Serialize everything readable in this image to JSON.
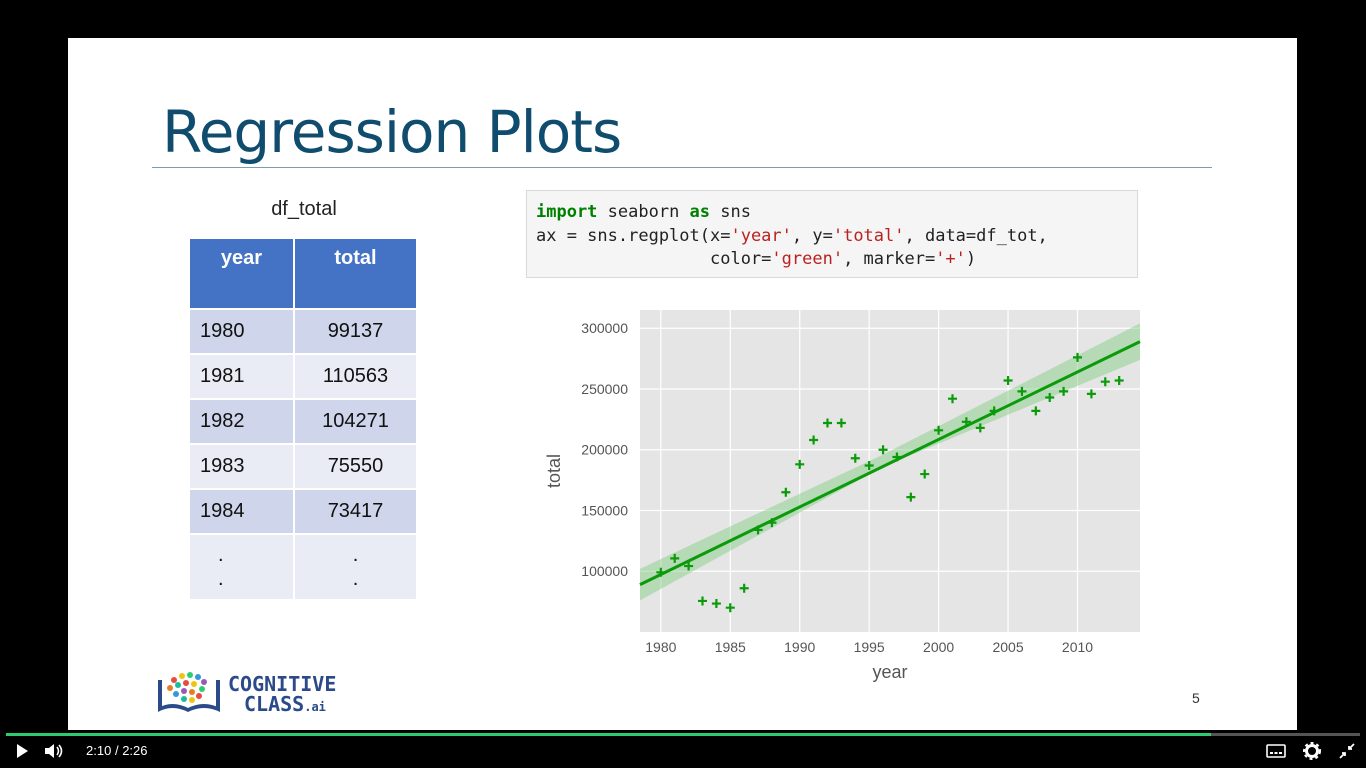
{
  "slide": {
    "title": "Regression Plots",
    "page_number": "5",
    "table_caption": "df_total",
    "table": {
      "headers": [
        "year",
        "total"
      ],
      "rows": [
        [
          "1980",
          "99137"
        ],
        [
          "1981",
          "110563"
        ],
        [
          "1982",
          "104271"
        ],
        [
          "1983",
          "75550"
        ],
        [
          "1984",
          "73417"
        ]
      ],
      "ellipsis": [
        ".",
        "."
      ]
    },
    "code": {
      "line1": {
        "kw1": "import",
        "t1": " seaborn ",
        "kw2": "as",
        "t2": " sns"
      },
      "line2": {
        "t1": "ax = sns.regplot(x=",
        "s1": "'year'",
        "t2": ", y=",
        "s2": "'total'",
        "t3": ", data=df_tot,"
      },
      "line3": {
        "t1": "                 color=",
        "s1": "'green'",
        "t2": ", marker=",
        "s2": "'+'",
        "t3": ")"
      }
    },
    "logo": {
      "line1": "COGNITIVE",
      "line2": "CLASS",
      ".ai": ".ai",
      "line2_suffix": ".ai"
    }
  },
  "chart_data": {
    "type": "scatter",
    "xlabel": "year",
    "ylabel": "total",
    "xlim": [
      1978.5,
      2014.5
    ],
    "ylim": [
      50000,
      315000
    ],
    "xticks": [
      1980,
      1985,
      1990,
      1995,
      2000,
      2005,
      2010
    ],
    "yticks": [
      100000,
      150000,
      200000,
      250000,
      300000
    ],
    "grid": true,
    "marker": "+",
    "color": "#0a9a0a",
    "background": "#e5e5e5",
    "x": [
      1980,
      1981,
      1982,
      1983,
      1984,
      1985,
      1986,
      1987,
      1988,
      1989,
      1990,
      1991,
      1992,
      1993,
      1994,
      1995,
      1996,
      1997,
      1998,
      1999,
      2000,
      2001,
      2002,
      2003,
      2004,
      2005,
      2006,
      2007,
      2008,
      2009,
      2010,
      2011,
      2012,
      2013
    ],
    "y": [
      99137,
      110563,
      104271,
      75550,
      73417,
      70000,
      86000,
      134000,
      140000,
      165000,
      188000,
      208000,
      222000,
      222000,
      193000,
      187000,
      200000,
      194000,
      161000,
      180000,
      216000,
      242000,
      223000,
      218000,
      232000,
      257000,
      248000,
      232000,
      243000,
      248000,
      276000,
      246000,
      256000,
      257000
    ],
    "regression_line": {
      "x": [
        1978.5,
        2014.5
      ],
      "y": [
        89000,
        289000
      ]
    },
    "confidence_band": {
      "x": [
        1978.5,
        1996,
        2014.5
      ],
      "lower": [
        76000,
        186000,
        274000
      ],
      "upper": [
        102000,
        196000,
        304000
      ]
    }
  },
  "player": {
    "current_time": "2:10",
    "separator": "/",
    "duration": "2:26",
    "progress": 0.89,
    "colors": {
      "progress": "#2ecc71",
      "bar": "#000000"
    },
    "icons": [
      "play-icon",
      "volume-icon",
      "captions-icon",
      "gear-icon",
      "exit-fullscreen-icon"
    ]
  }
}
